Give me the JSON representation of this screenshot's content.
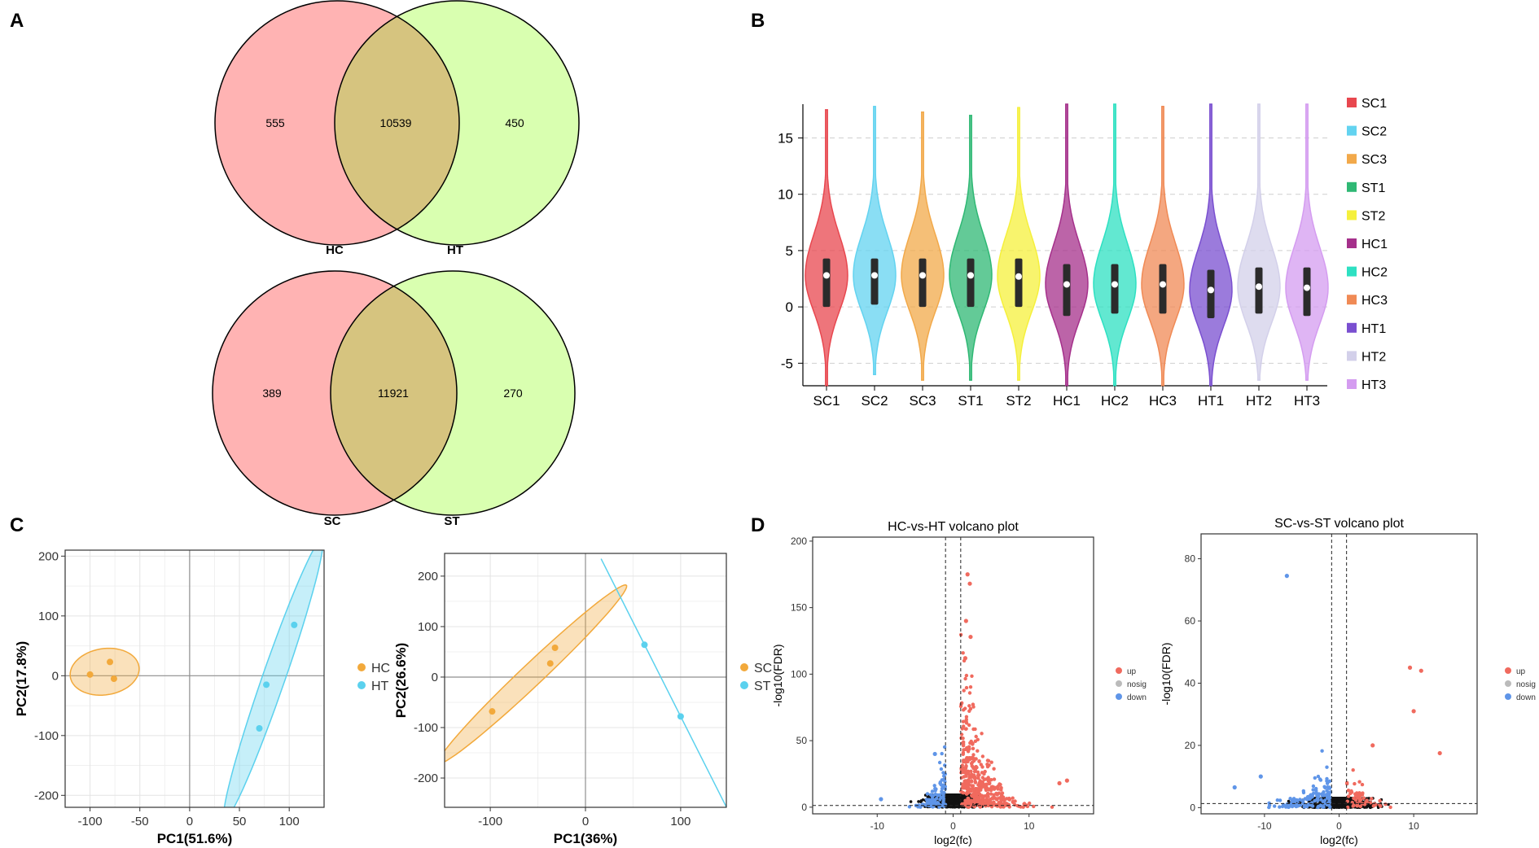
{
  "panels": {
    "A": "A",
    "B": "B",
    "C": "C",
    "D": "D"
  },
  "colors": {
    "venn_left": "#ffb3b3",
    "venn_right": "#d9ffb0",
    "venn_overlap": "#d6c47f",
    "pca_a": "#f2a93b",
    "pca_b": "#5bd1ee",
    "volcano_up": "#f06a5e",
    "volcano_nosig": "#bbbbbb",
    "volcano_down": "#5f95e8"
  },
  "chart_data": [
    {
      "type": "venn",
      "id": "venn1",
      "sets": [
        "HC",
        "HT"
      ],
      "values": {
        "left_only": "555",
        "overlap": "10539",
        "right_only": "450"
      }
    },
    {
      "type": "venn",
      "id": "venn2",
      "sets": [
        "SC",
        "ST"
      ],
      "values": {
        "left_only": "389",
        "overlap": "11921",
        "right_only": "270"
      }
    },
    {
      "type": "violin",
      "id": "violin",
      "ylim": [
        -7,
        18
      ],
      "yticks": [
        -5,
        0,
        5,
        10,
        15
      ],
      "series": [
        {
          "name": "SC1",
          "color": "#e8474f",
          "median": 2.8,
          "q1": 0.0,
          "q3": 4.3,
          "min": -7,
          "max": 17.5
        },
        {
          "name": "SC2",
          "color": "#63d3f0",
          "median": 2.8,
          "q1": 0.2,
          "q3": 4.3,
          "min": -6,
          "max": 17.8
        },
        {
          "name": "SC3",
          "color": "#f2a94a",
          "median": 2.8,
          "q1": 0.0,
          "q3": 4.3,
          "min": -6.5,
          "max": 17.3
        },
        {
          "name": "ST1",
          "color": "#2fb874",
          "median": 2.8,
          "q1": 0.0,
          "q3": 4.3,
          "min": -6.5,
          "max": 17.0
        },
        {
          "name": "ST2",
          "color": "#f5f03c",
          "median": 2.7,
          "q1": 0.0,
          "q3": 4.3,
          "min": -6.5,
          "max": 17.7
        },
        {
          "name": "HC1",
          "color": "#a5308b",
          "median": 2.0,
          "q1": -0.8,
          "q3": 3.8,
          "min": -7,
          "max": 18.0
        },
        {
          "name": "HC2",
          "color": "#2ee0c2",
          "median": 2.0,
          "q1": -0.6,
          "q3": 3.8,
          "min": -7,
          "max": 18.0
        },
        {
          "name": "HC3",
          "color": "#f08a55",
          "median": 2.0,
          "q1": -0.6,
          "q3": 3.8,
          "min": -7,
          "max": 17.8
        },
        {
          "name": "HT1",
          "color": "#7a4fd0",
          "median": 1.5,
          "q1": -1.0,
          "q3": 3.3,
          "min": -7,
          "max": 18.0
        },
        {
          "name": "HT2",
          "color": "#d3d0ea",
          "median": 1.8,
          "q1": -0.6,
          "q3": 3.5,
          "min": -6.5,
          "max": 18.0
        },
        {
          "name": "HT3",
          "color": "#d49cf0",
          "median": 1.7,
          "q1": -0.8,
          "q3": 3.5,
          "min": -6.5,
          "max": 18.0
        }
      ]
    },
    {
      "type": "scatter",
      "id": "pca1",
      "xlabel": "PC1(51.6%)",
      "ylabel": "PC2(17.8%)",
      "xlim": [
        -125,
        135
      ],
      "ylim": [
        -220,
        210
      ],
      "xticks": [
        -100,
        -50,
        0,
        50,
        100
      ],
      "yticks": [
        -200,
        -100,
        0,
        100,
        200
      ],
      "groups": [
        {
          "name": "HC",
          "color": "#f2a93b",
          "points": [
            [
              -100,
              2
            ],
            [
              -80,
              23
            ],
            [
              -76,
              -5
            ]
          ]
        },
        {
          "name": "HT",
          "color": "#5bd1ee",
          "points": [
            [
              105,
              85
            ],
            [
              77,
              -15
            ],
            [
              70,
              -88
            ]
          ]
        }
      ]
    },
    {
      "type": "scatter",
      "id": "pca2",
      "xlabel": "PC1(36%)",
      "ylabel": "PC2(26.6%)",
      "xlim": [
        -148,
        148
      ],
      "ylim": [
        -258,
        245
      ],
      "xticks": [
        -100,
        0,
        100
      ],
      "yticks": [
        -200,
        -100,
        0,
        100,
        200
      ],
      "groups": [
        {
          "name": "SC",
          "color": "#f2a93b",
          "points": [
            [
              -98,
              -68
            ],
            [
              -32,
              58
            ],
            [
              -37,
              27
            ]
          ]
        },
        {
          "name": "ST",
          "color": "#5bd1ee",
          "points": [
            [
              62,
              64
            ],
            [
              100,
              -78
            ]
          ]
        }
      ]
    },
    {
      "type": "scatter",
      "id": "volcano1",
      "title": "HC-vs-HT volcano plot",
      "xlabel": "log2(fc)",
      "ylabel": "-log10(FDR)",
      "xlim": [
        -18.5,
        18.5
      ],
      "ylim": [
        -5,
        203
      ],
      "xticks": [
        -10,
        0,
        10
      ],
      "yticks": [
        0,
        50,
        100,
        150,
        200
      ],
      "thresholds": {
        "x": [
          -1,
          1
        ],
        "y": 1.3
      },
      "legend": [
        "up",
        "nosig",
        "down"
      ]
    },
    {
      "type": "scatter",
      "id": "volcano2",
      "title": "SC-vs-ST volcano plot",
      "xlabel": "log2(fc)",
      "ylabel": "-log10(FDR)",
      "xlim": [
        -18.5,
        18.5
      ],
      "ylim": [
        -2,
        88
      ],
      "xticks": [
        -10,
        0,
        10
      ],
      "yticks": [
        0,
        20,
        40,
        60,
        80
      ],
      "thresholds": {
        "x": [
          -1,
          1
        ],
        "y": 1.3
      },
      "legend": [
        "up",
        "nosig",
        "down"
      ]
    }
  ]
}
